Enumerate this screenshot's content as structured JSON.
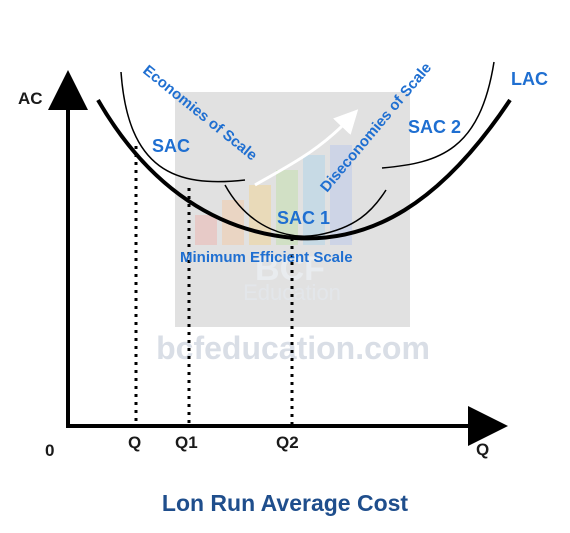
{
  "diagram": {
    "y_axis_label": "AC",
    "x_axis_label": "Q",
    "origin_label": "0",
    "tick_labels": [
      "Q",
      "Q1",
      "Q2"
    ],
    "curve_labels": {
      "sac": "SAC",
      "sac1": "SAC 1",
      "sac2": "SAC 2",
      "lac": "LAC"
    },
    "annotations": {
      "economies": "Economies of Scale",
      "diseconomies": "Diseconomies of Scale",
      "mes": "Minimum Efficient Scale"
    },
    "watermark": {
      "logo_text": "BCF",
      "logo_sub": "Education",
      "url": "bcfeducation.com"
    },
    "title": "Lon Run Average Cost",
    "colors": {
      "label_blue": "#1f6fd1",
      "title_blue": "#1f4e8c",
      "axis": "#000000",
      "watermark_gray": "#c8c8c8",
      "watermark_text": "#d9dee6"
    }
  }
}
